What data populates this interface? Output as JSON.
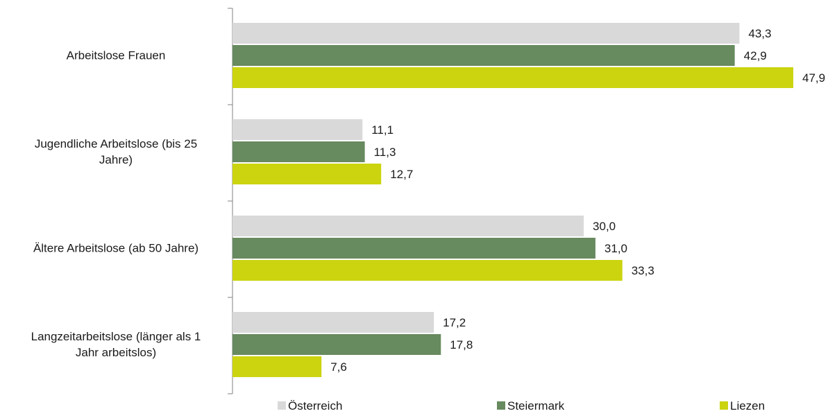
{
  "chart_data": {
    "type": "bar",
    "orientation": "horizontal",
    "categories": [
      "Arbeitslose Frauen",
      "Jugendliche Arbeitslose (bis 25 Jahre)",
      "Ältere Arbeitslose (ab 50 Jahre)",
      "Langzeitarbeitslose (länger als 1 Jahr arbeitslos)"
    ],
    "category_label_lines": [
      [
        "Arbeitslose Frauen"
      ],
      [
        "Jugendliche Arbeitslose (bis 25",
        "Jahre)"
      ],
      [
        "Ältere Arbeitslose (ab 50 Jahre)"
      ],
      [
        "Langzeitarbeitslose (länger als 1",
        "Jahr arbeitslos)"
      ]
    ],
    "series": [
      {
        "name": "Österreich",
        "color": "#d9d9d9",
        "values": [
          43.3,
          11.1,
          30.0,
          17.2
        ],
        "labels": [
          "43,3",
          "11,1",
          "30,0",
          "17,2"
        ]
      },
      {
        "name": "Steiermark",
        "color": "#678a5e",
        "values": [
          42.9,
          11.3,
          31.0,
          17.8
        ],
        "labels": [
          "42,9",
          "11,3",
          "31,0",
          "17,8"
        ]
      },
      {
        "name": "Liezen",
        "color": "#cbd40f",
        "values": [
          47.9,
          12.7,
          33.3,
          7.6
        ],
        "labels": [
          "47,9",
          "12,7",
          "33,3",
          "7,6"
        ]
      }
    ],
    "xlim": [
      0,
      48
    ],
    "grid": false,
    "legend": "bottom",
    "title": "",
    "xlabel": "",
    "ylabel": ""
  }
}
